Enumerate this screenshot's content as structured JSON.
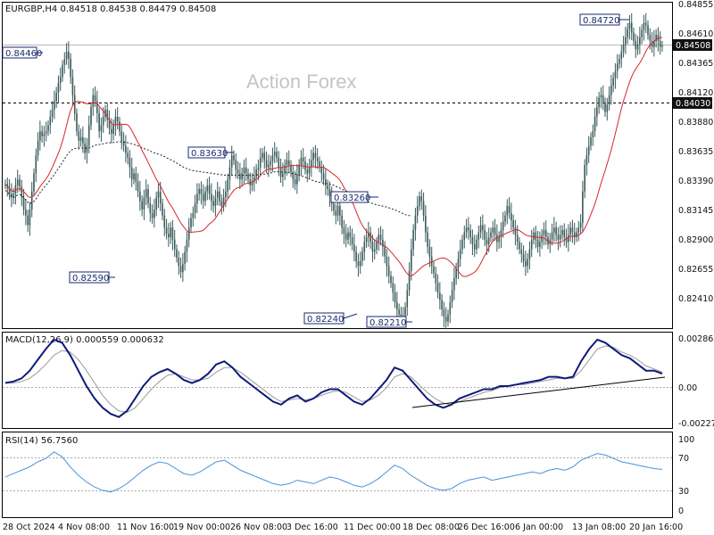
{
  "header": {
    "symbol_line": "EURGBP,H4  0.84518 0.84538 0.84479 0.84508",
    "watermark": "Action Forex"
  },
  "colors": {
    "candle": "#3a5a5a",
    "ma_slow": "#d6262b",
    "ma_long": "#222222",
    "macd": "#0d1a7a",
    "macd_signal": "#9a9a9a",
    "rsi": "#4a90d9",
    "level_box": "#1a2a6c",
    "price_tag_bg": "#111111",
    "price_tag_text": "#ffffff"
  },
  "chart_data": [
    {
      "type": "candlestick",
      "title": "EURGBP,H4  0.84518 0.84538 0.84479 0.84508",
      "x_tick_labels": [
        "28 Oct 2024",
        "4 Nov 08:00",
        "11 Nov 16:00",
        "19 Nov 00:00",
        "26 Nov 08:00",
        "3 Dec 16:00",
        "11 Dec 00:00",
        "18 Dec 08:00",
        "26 Dec 16:00",
        "6 Jan 00:00",
        "13 Jan 08:00",
        "20 Jan 16:00"
      ],
      "y_tick_labels": [
        "0.84855",
        "0.84610",
        "0.84365",
        "0.84120",
        "0.83880",
        "0.83635",
        "0.83390",
        "0.83145",
        "0.82900",
        "0.82655",
        "0.82410"
      ],
      "ylim": [
        0.8218,
        0.8486
      ],
      "series": [
        {
          "name": "EURGBP",
          "closes": [
            0.8336,
            0.8333,
            0.8328,
            0.8325,
            0.8328,
            0.8335,
            0.834,
            0.8334,
            0.8325,
            0.8315,
            0.831,
            0.8302,
            0.8315,
            0.833,
            0.8345,
            0.836,
            0.8372,
            0.838,
            0.8376,
            0.8378,
            0.838,
            0.8385,
            0.8392,
            0.8398,
            0.8405,
            0.8412,
            0.842,
            0.8425,
            0.8435,
            0.844,
            0.8446,
            0.844,
            0.8425,
            0.841,
            0.8395,
            0.838,
            0.8372,
            0.8375,
            0.837,
            0.8362,
            0.8368,
            0.8385,
            0.84,
            0.841,
            0.8405,
            0.8395,
            0.838,
            0.8385,
            0.8392,
            0.8398,
            0.839,
            0.8382,
            0.8378,
            0.8385,
            0.8392,
            0.8388,
            0.838,
            0.8372,
            0.8368,
            0.8362,
            0.8358,
            0.835,
            0.834,
            0.8345,
            0.8338,
            0.833,
            0.8322,
            0.8315,
            0.8325,
            0.8332,
            0.832,
            0.8312,
            0.8308,
            0.8315,
            0.8325,
            0.833,
            0.832,
            0.831,
            0.83,
            0.8295,
            0.8292,
            0.83,
            0.829,
            0.8282,
            0.8275,
            0.8268,
            0.8263,
            0.827,
            0.828,
            0.829,
            0.83,
            0.8308,
            0.8312,
            0.832,
            0.8328,
            0.8332,
            0.8328,
            0.8322,
            0.833,
            0.8335,
            0.8328,
            0.8322,
            0.8318,
            0.8325,
            0.833,
            0.8322,
            0.8318,
            0.8325,
            0.833,
            0.834,
            0.835,
            0.836,
            0.8356,
            0.8348,
            0.8345,
            0.834,
            0.8345,
            0.835,
            0.8345,
            0.834,
            0.8335,
            0.8338,
            0.8342,
            0.8348,
            0.835,
            0.8358,
            0.8362,
            0.8356,
            0.835,
            0.8352,
            0.8355,
            0.836,
            0.8363,
            0.8358,
            0.835,
            0.8342,
            0.8345,
            0.8352,
            0.8356,
            0.8352,
            0.8346,
            0.834,
            0.8336,
            0.8344,
            0.8352,
            0.8358,
            0.8355,
            0.8348,
            0.8345,
            0.835,
            0.8356,
            0.8362,
            0.8358,
            0.8355,
            0.835,
            0.8345,
            0.834,
            0.8335,
            0.8332,
            0.8326,
            0.832,
            0.8314,
            0.831,
            0.8318,
            0.831,
            0.83,
            0.8295,
            0.829,
            0.8296,
            0.8292,
            0.8286,
            0.828,
            0.8272,
            0.8268,
            0.8272,
            0.828,
            0.8288,
            0.8292,
            0.8296,
            0.8288,
            0.828,
            0.8282,
            0.8288,
            0.8294,
            0.829,
            0.8284,
            0.8276,
            0.8268,
            0.826,
            0.8254,
            0.8246,
            0.8238,
            0.8232,
            0.8228,
            0.8226,
            0.8224,
            0.8234,
            0.8248,
            0.8264,
            0.8282,
            0.8298,
            0.831,
            0.8318,
            0.8326,
            0.8322,
            0.831,
            0.8296,
            0.8284,
            0.8276,
            0.8268,
            0.8262,
            0.8254,
            0.8246,
            0.824,
            0.8232,
            0.8226,
            0.8222,
            0.8228,
            0.8238,
            0.8248,
            0.8258,
            0.8266,
            0.8274,
            0.8282,
            0.829,
            0.8296,
            0.83,
            0.8298,
            0.8292,
            0.8286,
            0.8282,
            0.829,
            0.8296,
            0.8302,
            0.8298,
            0.829,
            0.8286,
            0.8292,
            0.8296,
            0.83,
            0.8294,
            0.8288,
            0.8292,
            0.8298,
            0.8305,
            0.831,
            0.8318,
            0.8312,
            0.8306,
            0.83,
            0.8294,
            0.8288,
            0.8282,
            0.8278,
            0.8272,
            0.8268,
            0.8274,
            0.8282,
            0.829,
            0.8296,
            0.829,
            0.8284,
            0.8288,
            0.8294,
            0.8298,
            0.8292,
            0.8286,
            0.829,
            0.8296,
            0.83,
            0.8294,
            0.829,
            0.8294,
            0.8298,
            0.8292,
            0.8288,
            0.8294,
            0.83,
            0.8296,
            0.8292,
            0.8296,
            0.83,
            0.8304,
            0.833,
            0.8352,
            0.836,
            0.8368,
            0.8375,
            0.838,
            0.8392,
            0.84,
            0.8408,
            0.841,
            0.8404,
            0.8396,
            0.8402,
            0.841,
            0.8418,
            0.8424,
            0.843,
            0.8436,
            0.844,
            0.8446,
            0.8452,
            0.8458,
            0.8465,
            0.847,
            0.8462,
            0.8455,
            0.8448,
            0.8452,
            0.8458,
            0.8464,
            0.847,
            0.8468,
            0.846,
            0.8455,
            0.845,
            0.8455,
            0.846,
            0.8455,
            0.845,
            0.8451
          ]
        }
      ],
      "level_labels": [
        "0.84460",
        "0.83630",
        "0.82590",
        "0.83260",
        "0.82240",
        "0.82210",
        "0.84720"
      ],
      "price_tags": [
        "0.84508",
        "0.84030"
      ]
    },
    {
      "type": "line",
      "title": "MACD(12,26,9) 0.000559 0.000632",
      "y_tick_labels": [
        "0.002865",
        "0.00",
        "-0.002271"
      ],
      "ylim": [
        -0.00285,
        0.0032
      ],
      "series": [
        {
          "name": "MACD",
          "values": [
            0.0,
            0.0001,
            0.0003,
            0.0008,
            0.0015,
            0.0022,
            0.0028,
            0.0026,
            0.0018,
            0.0008,
            -0.0002,
            -0.001,
            -0.0016,
            -0.002,
            -0.0022,
            -0.0018,
            -0.001,
            -0.0002,
            0.0004,
            0.0007,
            0.0009,
            0.0006,
            0.0002,
            0.0,
            0.0002,
            0.0006,
            0.0012,
            0.0014,
            0.001,
            0.0004,
            0.0,
            -0.0004,
            -0.0008,
            -0.0012,
            -0.0014,
            -0.001,
            -0.0008,
            -0.0012,
            -0.001,
            -0.0006,
            -0.0004,
            -0.0004,
            -0.0008,
            -0.0012,
            -0.0014,
            -0.001,
            -0.0004,
            0.0002,
            0.001,
            0.0008,
            0.0002,
            -0.0004,
            -0.001,
            -0.0014,
            -0.0016,
            -0.0014,
            -0.001,
            -0.0008,
            -0.0006,
            -0.0004,
            -0.0004,
            -0.0002,
            -0.0002,
            -0.0001,
            0.0,
            0.0001,
            0.0002,
            0.0004,
            0.0004,
            0.0003,
            0.0004,
            0.0014,
            0.0022,
            0.0028,
            0.0026,
            0.0022,
            0.0018,
            0.0016,
            0.0012,
            0.0008,
            0.0008,
            0.0006
          ]
        },
        {
          "name": "Signal",
          "values": [
            0.0,
            0.0,
            0.0001,
            0.0003,
            0.0007,
            0.0012,
            0.0018,
            0.0021,
            0.002,
            0.0015,
            0.0008,
            0.0,
            -0.0008,
            -0.0014,
            -0.0018,
            -0.0019,
            -0.0016,
            -0.001,
            -0.0004,
            0.0001,
            0.0005,
            0.0006,
            0.0004,
            0.0002,
            0.0002,
            0.0003,
            0.0007,
            0.001,
            0.001,
            0.0007,
            0.0003,
            -0.0001,
            -0.0005,
            -0.0009,
            -0.0012,
            -0.0011,
            -0.001,
            -0.0011,
            -0.001,
            -0.0008,
            -0.0006,
            -0.0005,
            -0.0006,
            -0.0009,
            -0.0012,
            -0.0011,
            -0.0008,
            -0.0003,
            0.0004,
            0.0006,
            0.0004,
            -0.0001,
            -0.0006,
            -0.001,
            -0.0013,
            -0.0014,
            -0.0012,
            -0.001,
            -0.0008,
            -0.0006,
            -0.0005,
            -0.0003,
            -0.0002,
            -0.0001,
            -0.0001,
            0.0,
            0.0001,
            0.0002,
            0.0003,
            0.0003,
            0.0003,
            0.0008,
            0.0015,
            0.0022,
            0.0024,
            0.0023,
            0.002,
            0.0018,
            0.0015,
            0.0011,
            0.0009,
            0.0007
          ]
        }
      ]
    },
    {
      "type": "line",
      "title": "RSI(14) 56.7560",
      "y_tick_labels": [
        "100",
        "70",
        "30",
        "0"
      ],
      "ylim": [
        0,
        100
      ],
      "series": [
        {
          "name": "RSI",
          "values": [
            48,
            52,
            56,
            60,
            66,
            70,
            78,
            72,
            60,
            50,
            42,
            36,
            32,
            30,
            34,
            40,
            48,
            56,
            62,
            66,
            64,
            58,
            52,
            50,
            54,
            60,
            66,
            68,
            62,
            56,
            52,
            48,
            44,
            40,
            38,
            40,
            44,
            42,
            40,
            44,
            48,
            46,
            42,
            38,
            36,
            40,
            46,
            54,
            62,
            58,
            50,
            44,
            38,
            34,
            32,
            34,
            40,
            44,
            46,
            48,
            44,
            46,
            48,
            50,
            52,
            54,
            52,
            56,
            58,
            56,
            60,
            68,
            72,
            76,
            74,
            70,
            66,
            64,
            62,
            60,
            58,
            57
          ]
        }
      ]
    }
  ]
}
